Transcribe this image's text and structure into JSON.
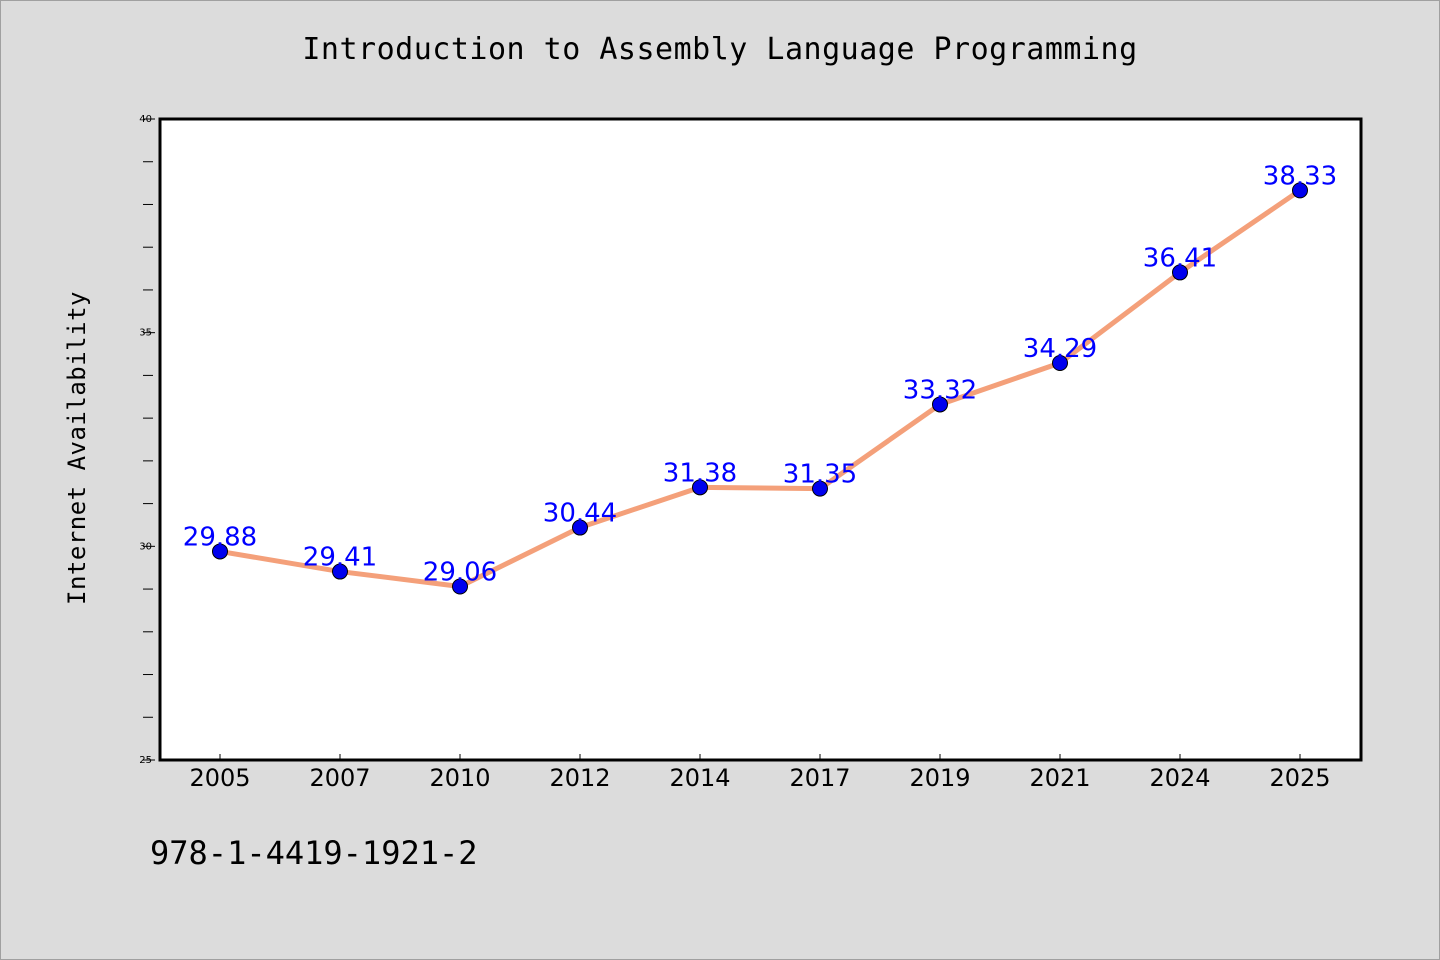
{
  "chart_data": {
    "type": "line",
    "title": "Introduction to Assembly Language Programming",
    "xlabel": "",
    "ylabel": "Internet Availability",
    "categories": [
      "2005",
      "2007",
      "2010",
      "2012",
      "2014",
      "2017",
      "2019",
      "2021",
      "2024",
      "2025"
    ],
    "series": [
      {
        "values": [
          29.88,
          29.41,
          29.06,
          30.44,
          31.38,
          31.35,
          33.32,
          34.29,
          36.41,
          38.33
        ],
        "data_labels": [
          "29.88",
          "29.41",
          "29.06",
          "30.44",
          "31.38",
          "31.35",
          "33.32",
          "34.29",
          "36.41",
          "38.33"
        ],
        "line_color": "#f4a07a",
        "marker_color": "#0000ee",
        "label_color": "#0000ff"
      }
    ],
    "ylim": [
      25,
      40
    ],
    "y_ticks": [
      "25",
      "30",
      "35",
      "40"
    ],
    "grid": false,
    "legend": "none"
  },
  "footer_text": "978-1-4419-1921-2"
}
